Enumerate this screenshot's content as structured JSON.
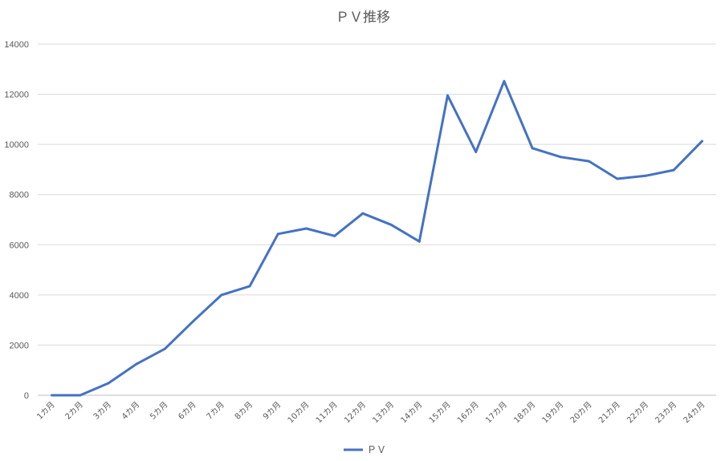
{
  "chart_data": {
    "type": "line",
    "title": "ＰＶ推移",
    "xlabel": "",
    "ylabel": "",
    "categories": [
      "1カ月",
      "2カ月",
      "3カ月",
      "4カ月",
      "5カ月",
      "6カ月",
      "7カ月",
      "8カ月",
      "9カ月",
      "10カ月",
      "11カ月",
      "12カ月",
      "13カ月",
      "14カ月",
      "15カ月",
      "16カ月",
      "17カ月",
      "18カ月",
      "19カ月",
      "20カ月",
      "21カ月",
      "22カ月",
      "23カ月",
      "24カ月"
    ],
    "series": [
      {
        "name": "ＰＶ",
        "color": "#4472C4",
        "values": [
          0,
          0,
          480,
          1250,
          1850,
          2950,
          4000,
          4350,
          6430,
          6650,
          6350,
          7250,
          6800,
          6130,
          11950,
          9700,
          12520,
          9850,
          9500,
          9330,
          8630,
          8750,
          8980,
          10130
        ]
      }
    ],
    "ylim": [
      0,
      14000
    ],
    "yticks": [
      0,
      2000,
      4000,
      6000,
      8000,
      10000,
      12000,
      14000
    ],
    "grid": true,
    "legend_position": "bottom"
  }
}
